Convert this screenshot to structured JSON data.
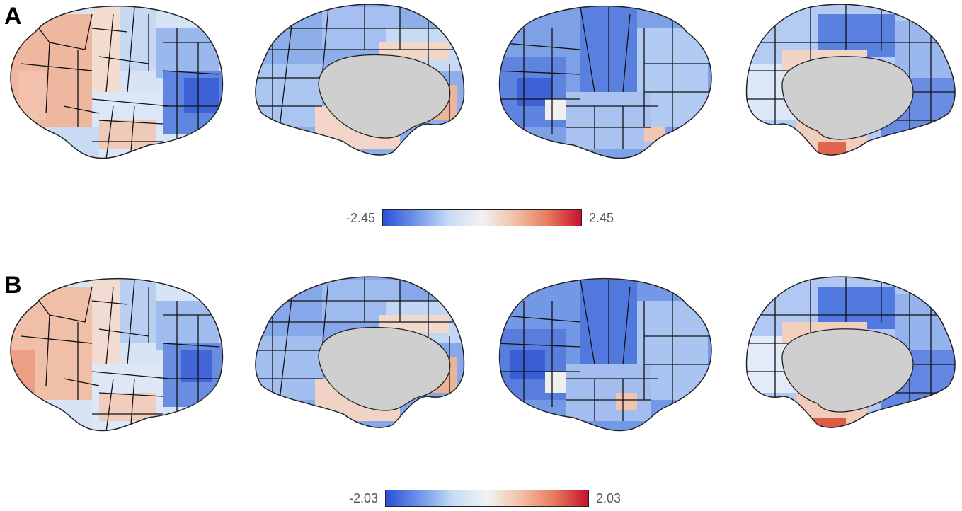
{
  "panels": [
    {
      "letter": "A",
      "colorbar": {
        "min_label": "-2.45",
        "max_label": "2.45"
      },
      "views": [
        "left-lateral",
        "left-medial",
        "right-lateral",
        "right-medial"
      ]
    },
    {
      "letter": "B",
      "colorbar": {
        "min_label": "-2.03",
        "max_label": "2.03"
      },
      "views": [
        "left-lateral",
        "left-medial",
        "right-lateral",
        "right-medial"
      ]
    }
  ],
  "colors": {
    "cmap_low": "#2b4fd8",
    "cmap_mid_low": "#a8c8f0",
    "cmap_mid": "#f2f2f2",
    "cmap_mid_high": "#f0a585",
    "cmap_high": "#c8102e",
    "medial_wall": "#cfcfcf",
    "outline": "#111111"
  }
}
